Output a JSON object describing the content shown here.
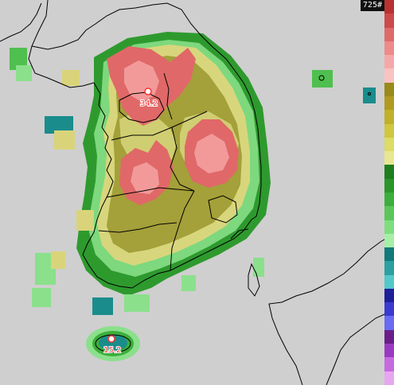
{
  "timestamp_label": "725#",
  "stations": [
    {
      "id": "seoul",
      "value_label": "34.2"
    },
    {
      "id": "jeju",
      "value_label": "15.2"
    }
  ],
  "colors": {
    "background": "#cfcfcf",
    "boundary": "#000000",
    "hot": "#e06868",
    "hot_light": "#f39a9a",
    "warm": "#d9d47a",
    "olive": "#9a9a30",
    "green": "#3fae3f",
    "lightgreen": "#8be08b",
    "teal": "#1a8c8c",
    "station_marker": "#ffffff"
  },
  "colorbar": {
    "segments": [
      {
        "color": "#b83232"
      },
      {
        "color": "#cc4a4a"
      },
      {
        "color": "#de6a6a"
      },
      {
        "color": "#ee8a8a"
      },
      {
        "color": "#f6a8a8"
      },
      {
        "color": "#fbc2c2"
      },
      {
        "color": "#9a8a1a"
      },
      {
        "color": "#b09a20"
      },
      {
        "color": "#c0b02a"
      },
      {
        "color": "#d0c640"
      },
      {
        "color": "#dcdc66"
      },
      {
        "color": "#e8e890"
      },
      {
        "color": "#1e7e1e"
      },
      {
        "color": "#2a962a"
      },
      {
        "color": "#3cae3c"
      },
      {
        "color": "#5ac65a"
      },
      {
        "color": "#7ede7e"
      },
      {
        "color": "#a6f0a6"
      },
      {
        "color": "#117a7a"
      },
      {
        "color": "#2aa0a0"
      },
      {
        "color": "#52c8c8"
      },
      {
        "color": "#1e1e9a"
      },
      {
        "color": "#3a3ad2"
      },
      {
        "color": "#6a6af2"
      },
      {
        "color": "#6a1e8a"
      },
      {
        "color": "#9a3ac2"
      },
      {
        "color": "#c66ae0"
      },
      {
        "color": "#e8a6f2"
      }
    ]
  }
}
